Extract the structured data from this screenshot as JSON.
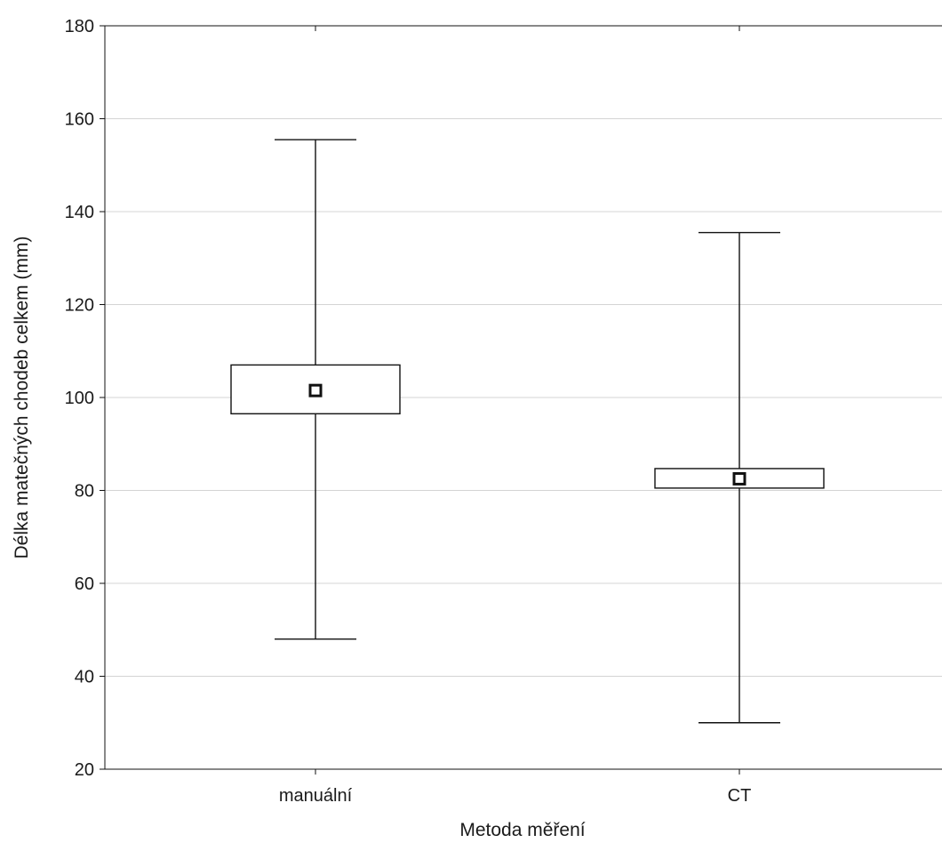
{
  "chart_data": {
    "type": "box",
    "title": "",
    "xlabel": "Metoda měření",
    "ylabel": "Délka matečných chodeb celkem (mm)",
    "ylim": [
      20,
      180
    ],
    "yticks": [
      20,
      40,
      60,
      80,
      100,
      120,
      140,
      160,
      180
    ],
    "grid": true,
    "categories": [
      "manuální",
      "CT"
    ],
    "series": [
      {
        "category": "manuální",
        "mean": 101.5,
        "box_low": 96.5,
        "box_high": 107,
        "whisker_low": 48,
        "whisker_high": 155.5
      },
      {
        "category": "CT",
        "mean": 82.5,
        "box_low": 80.5,
        "box_high": 84.7,
        "whisker_low": 30,
        "whisker_high": 135.5
      }
    ],
    "colors": {
      "line": "#111111",
      "grid": "#d4d4d4",
      "box_fill": "#ffffff",
      "marker_fill": "#ffffff"
    }
  }
}
